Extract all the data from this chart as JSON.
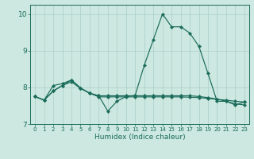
{
  "xlabel": "Humidex (Indice chaleur)",
  "bg_color": "#cce8e0",
  "grid_color": "#aacfc8",
  "line_color": "#1a6b5a",
  "xlim": [
    -0.5,
    23.5
  ],
  "ylim": [
    7.0,
    10.25
  ],
  "yticks": [
    7,
    8,
    9,
    10
  ],
  "xticks": [
    0,
    1,
    2,
    3,
    4,
    5,
    6,
    7,
    8,
    9,
    10,
    11,
    12,
    13,
    14,
    15,
    16,
    17,
    18,
    19,
    20,
    21,
    22,
    23
  ],
  "series1": [
    7.75,
    7.65,
    8.05,
    8.1,
    8.2,
    7.98,
    7.84,
    7.77,
    7.35,
    7.62,
    7.75,
    7.78,
    8.6,
    9.3,
    10.0,
    9.65,
    9.65,
    9.48,
    9.12,
    8.38,
    7.62,
    7.62,
    7.52,
    7.6
  ],
  "series2": [
    7.75,
    7.65,
    7.9,
    8.05,
    8.2,
    7.98,
    7.84,
    7.77,
    7.77,
    7.77,
    7.77,
    7.77,
    7.77,
    7.77,
    7.77,
    7.77,
    7.77,
    7.77,
    7.75,
    7.72,
    7.68,
    7.62,
    7.55,
    7.52
  ],
  "series3": [
    7.75,
    7.65,
    7.9,
    8.05,
    8.15,
    7.97,
    7.84,
    7.74,
    7.74,
    7.74,
    7.74,
    7.74,
    7.74,
    7.74,
    7.74,
    7.74,
    7.74,
    7.73,
    7.72,
    7.7,
    7.67,
    7.65,
    7.62,
    7.6
  ]
}
